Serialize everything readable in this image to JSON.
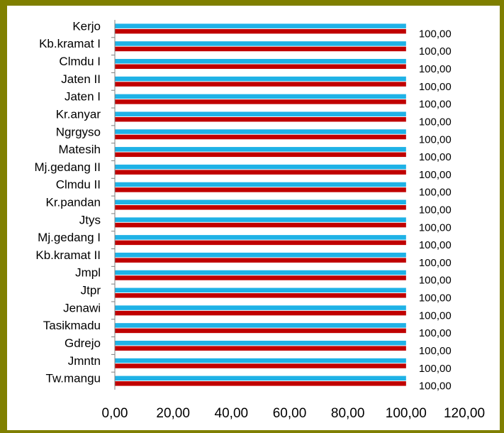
{
  "chart_data": {
    "type": "bar",
    "orientation": "horizontal",
    "categories": [
      "Kerjo",
      "Kb.kramat I",
      "Clmdu I",
      "Jaten II",
      "Jaten I",
      "Kr.anyar",
      "Ngrgyso",
      "Matesih",
      "Mj.gedang II",
      "Clmdu II",
      "Kr.pandan",
      "Jtys",
      "Mj.gedang I",
      "Kb.kramat II",
      "Jmpl",
      "Jtpr",
      "Jenawi",
      "Tasikmadu",
      "Gdrejo",
      "Jmntn",
      "Tw.mangu"
    ],
    "series": [
      {
        "color": "#1fb2e6",
        "values": [
          100,
          100,
          100,
          100,
          100,
          100,
          100,
          100,
          100,
          100,
          100,
          100,
          100,
          100,
          100,
          100,
          100,
          100,
          100,
          100,
          100
        ]
      },
      {
        "color": "#c00000",
        "values": [
          100,
          100,
          100,
          100,
          100,
          100,
          100,
          100,
          100,
          100,
          100,
          100,
          100,
          100,
          100,
          100,
          100,
          100,
          100,
          100,
          100
        ]
      }
    ],
    "value_labels": [
      "100,00",
      "100,00",
      "100,00",
      "100,00",
      "100,00",
      "100,00",
      "100,00",
      "100,00",
      "100,00",
      "100,00",
      "100,00",
      "100,00",
      "100,00",
      "100,00",
      "100,00",
      "100,00",
      "100,00",
      "100,00",
      "100,00",
      "100,00",
      "100,00"
    ],
    "xlim": [
      0,
      120
    ],
    "x_ticks": [
      0,
      20,
      40,
      60,
      80,
      100,
      120
    ],
    "x_tick_labels": [
      "0,00",
      "20,00",
      "40,00",
      "60,00",
      "80,00",
      "100,00",
      "120,00"
    ],
    "title": "",
    "xlabel": "",
    "ylabel": "",
    "grid": false,
    "legend": "none",
    "frame_color": "#7f7f00"
  }
}
